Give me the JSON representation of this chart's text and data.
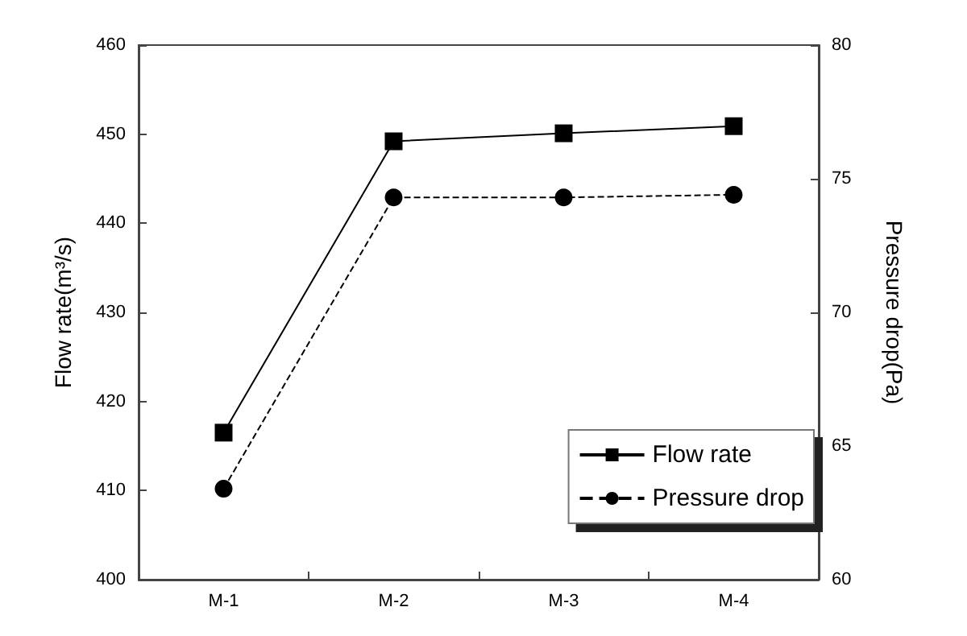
{
  "chart_data": {
    "type": "line",
    "categories": [
      "M-1",
      "M-2",
      "M-3",
      "M-4"
    ],
    "ylabel": "Flow rate(m³/s)",
    "y2label": "Pressure drop(Pa)",
    "ylim": [
      400,
      460
    ],
    "yticks": [
      400,
      410,
      420,
      430,
      440,
      450,
      460
    ],
    "y2lim": [
      60,
      80
    ],
    "y2ticks": [
      60,
      65,
      70,
      75,
      80
    ],
    "series": [
      {
        "name": "Flow rate",
        "color": "#000000",
        "values": [
          416.5,
          449.2,
          450.1,
          450.9
        ],
        "marker": "square",
        "line_style": "solid"
      },
      {
        "name": "Pressure drop",
        "color": "#000000",
        "values": [
          63.4,
          74.3,
          74.3,
          74.4
        ],
        "axis": "y2",
        "marker": "circle",
        "line_style": "dashed"
      }
    ],
    "legend": "bottom right",
    "grid": false
  }
}
